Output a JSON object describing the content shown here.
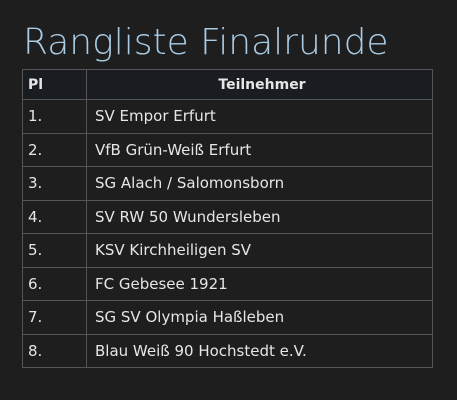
{
  "title": "Rangliste Finalrunde",
  "table": {
    "header": [
      "Pl",
      "Teilnehmer"
    ],
    "rows": [
      [
        "1.",
        "SV Empor Erfurt"
      ],
      [
        "2.",
        "VfB Grün-Weiß Erfurt"
      ],
      [
        "3.",
        "SG Alach / Salomonsborn"
      ],
      [
        "4.",
        "SV RW 50 Wundersleben"
      ],
      [
        "5.",
        "KSV Kirchheiligen SV"
      ],
      [
        "6.",
        "FC Gebesee 1921"
      ],
      [
        "7.",
        "SG SV Olympia Haßleben"
      ],
      [
        "8.",
        "Blau Weiß 90 Hochstedt e.V."
      ]
    ]
  }
}
